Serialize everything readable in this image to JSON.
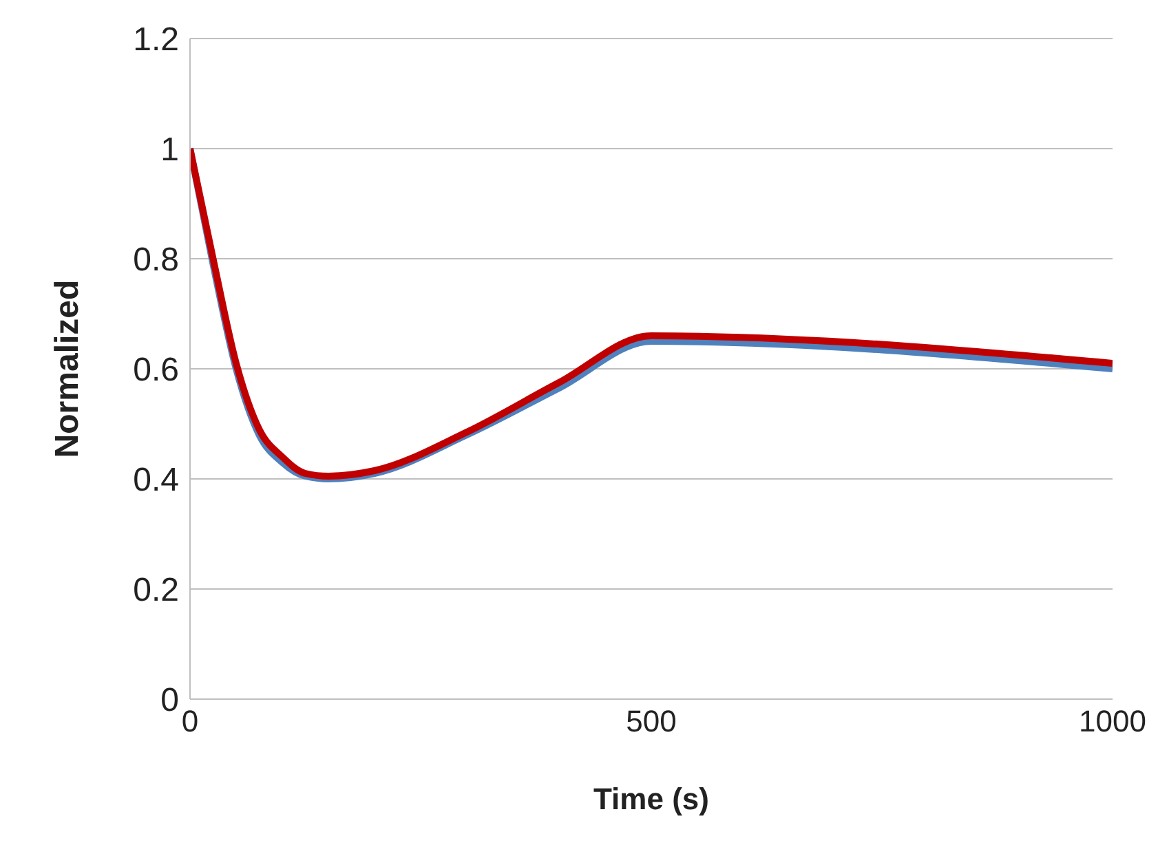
{
  "chart_data": {
    "type": "line",
    "xlabel": "Time (s)",
    "ylabel": "Normalized",
    "x": [
      0,
      25,
      50,
      75,
      100,
      125,
      150,
      200,
      300,
      400,
      500,
      1000
    ],
    "series": [
      {
        "color": "#4f81bd",
        "values": [
          1.0,
          0.79,
          0.6,
          0.48,
          0.43,
          0.405,
          0.4,
          0.41,
          0.48,
          0.565,
          0.65,
          0.6
        ]
      },
      {
        "color": "#c00000",
        "values": [
          1.0,
          0.8,
          0.61,
          0.49,
          0.44,
          0.41,
          0.405,
          0.415,
          0.485,
          0.575,
          0.66,
          0.61
        ]
      }
    ],
    "xlim": [
      0,
      1000
    ],
    "xticks": [
      0,
      500,
      1000
    ],
    "ylim": [
      0,
      1.2
    ],
    "yticks": [
      0,
      0.2,
      0.4,
      0.6,
      0.8,
      1,
      1.2
    ],
    "grid": "y",
    "marker": "none",
    "line_style": "solid"
  }
}
